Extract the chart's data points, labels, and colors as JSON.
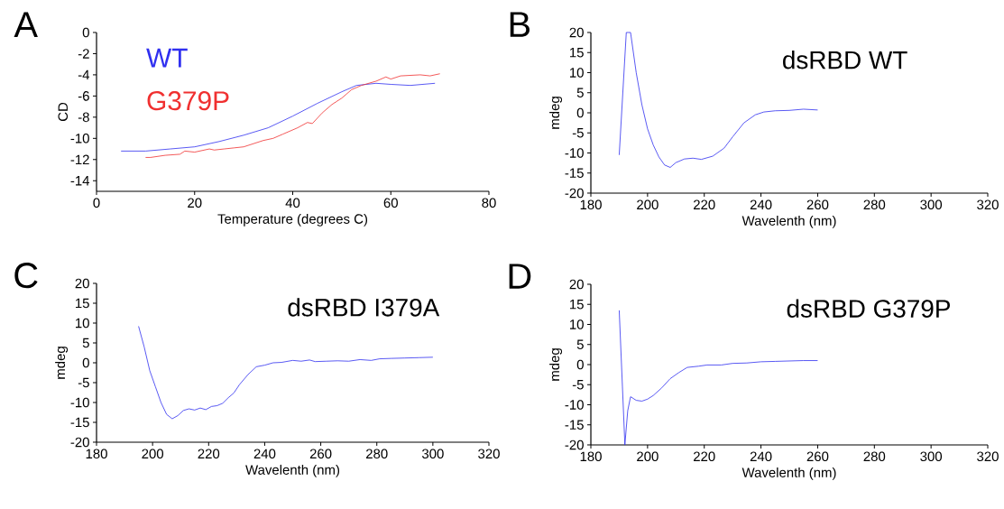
{
  "chart_data": [
    {
      "type": "line",
      "annotations": [
        "A"
      ],
      "xlabel": "Temperature (degrees C)",
      "ylabel": "CD",
      "xlim": [
        0,
        80
      ],
      "ylim": [
        -15,
        0
      ],
      "xticks": [
        0,
        20,
        40,
        60,
        80
      ],
      "yticks": [
        0,
        -2,
        -4,
        -6,
        -8,
        -10,
        -12,
        -14
      ],
      "legend": "top left",
      "grid": false,
      "series": [
        {
          "name": "WT",
          "color": "#3030f0",
          "x": [
            5,
            10,
            15,
            20,
            25,
            30,
            35,
            40,
            45,
            50,
            53,
            57,
            60,
            64,
            69
          ],
          "values": [
            -11.2,
            -11.2,
            -11.0,
            -10.8,
            -10.3,
            -9.7,
            -9.0,
            -7.9,
            -6.7,
            -5.6,
            -5.0,
            -4.8,
            -4.9,
            -5.0,
            -4.8
          ]
        },
        {
          "name": "G379P",
          "color": "#f03030",
          "x": [
            10,
            11,
            14,
            17,
            18,
            20,
            23,
            24,
            26,
            28,
            30,
            32,
            34,
            36,
            38,
            41,
            43,
            44,
            46,
            48,
            50,
            52,
            54,
            57,
            59,
            60,
            62,
            66,
            68,
            70
          ],
          "values": [
            -11.8,
            -11.8,
            -11.6,
            -11.5,
            -11.2,
            -11.3,
            -11.0,
            -11.1,
            -11.0,
            -10.9,
            -10.8,
            -10.5,
            -10.2,
            -10.0,
            -9.6,
            -9.0,
            -8.5,
            -8.6,
            -7.6,
            -6.8,
            -6.2,
            -5.4,
            -5.0,
            -4.6,
            -4.2,
            -4.4,
            -4.1,
            -4.0,
            -4.1,
            -3.9
          ]
        }
      ]
    },
    {
      "type": "line",
      "annotations": [
        "B"
      ],
      "title": "dsRBD WT",
      "xlabel": "Wavelenth (nm)",
      "ylabel": "mdeg",
      "xlim": [
        180,
        320
      ],
      "ylim": [
        -20,
        20
      ],
      "xticks": [
        180,
        200,
        220,
        240,
        260,
        280,
        300,
        320
      ],
      "yticks": [
        20,
        15,
        10,
        5,
        0,
        -5,
        -10,
        -15,
        -20
      ],
      "grid": false,
      "series": [
        {
          "color": "#3030f0",
          "x": [
            190,
            192.5,
            194,
            196,
            198,
            200,
            202,
            204,
            206,
            208,
            210,
            213,
            216,
            219,
            223,
            227,
            230,
            234,
            238,
            241,
            245,
            250,
            255,
            260
          ],
          "values": [
            -10.5,
            20,
            20,
            10,
            2,
            -4,
            -8,
            -11,
            -13,
            -13.6,
            -12.4,
            -11.5,
            -11.3,
            -11.6,
            -10.8,
            -8.8,
            -6,
            -2.5,
            -0.5,
            0.2,
            0.5,
            0.6,
            0.9,
            0.7
          ]
        }
      ]
    },
    {
      "type": "line",
      "annotations": [
        "C"
      ],
      "title": "dsRBD I379A",
      "xlabel": "Wavelenth (nm)",
      "ylabel": "mdeg",
      "xlim": [
        180,
        320
      ],
      "ylim": [
        -20,
        20
      ],
      "xticks": [
        180,
        200,
        220,
        240,
        260,
        280,
        300,
        320
      ],
      "yticks": [
        20,
        15,
        10,
        5,
        0,
        -5,
        -10,
        -15,
        -20
      ],
      "grid": false,
      "series": [
        {
          "color": "#3030f0",
          "x": [
            195,
            197,
            199,
            201,
            203,
            205,
            207,
            209,
            211,
            213,
            215,
            217,
            219,
            221,
            223,
            225,
            227,
            229,
            231,
            234,
            237,
            240,
            243,
            246,
            250,
            253,
            256,
            258,
            262,
            266,
            270,
            274,
            278,
            281,
            285,
            290,
            295,
            300
          ],
          "values": [
            9.2,
            4,
            -2,
            -6,
            -10,
            -13,
            -14.1,
            -13.3,
            -12,
            -11.6,
            -11.9,
            -11.4,
            -11.8,
            -11,
            -10.8,
            -10.2,
            -8.8,
            -7.6,
            -5.5,
            -3,
            -1,
            -0.6,
            0,
            0.1,
            0.6,
            0.4,
            0.7,
            0.3,
            0.4,
            0.5,
            0.4,
            0.8,
            0.6,
            1.0,
            1.1,
            1.2,
            1.3,
            1.4
          ]
        }
      ]
    },
    {
      "type": "line",
      "annotations": [
        "D"
      ],
      "title": "dsRBD G379P",
      "xlabel": "Wavelenth (nm)",
      "ylabel": "mdeg",
      "xlim": [
        180,
        320
      ],
      "ylim": [
        -20,
        20
      ],
      "xticks": [
        180,
        200,
        220,
        240,
        260,
        280,
        300,
        320
      ],
      "yticks": [
        20,
        15,
        10,
        5,
        0,
        -5,
        -10,
        -15,
        -20
      ],
      "grid": false,
      "series": [
        {
          "color": "#3030f0",
          "x": [
            190,
            192,
            193,
            194,
            196,
            198,
            200,
            202,
            205,
            208,
            211,
            214,
            218,
            221,
            226,
            230,
            235,
            240,
            245,
            250,
            255,
            260
          ],
          "values": [
            13.5,
            -20,
            -11.5,
            -8,
            -8.9,
            -9.1,
            -8.6,
            -7.7,
            -5.8,
            -3.5,
            -2,
            -0.7,
            -0.4,
            -0.1,
            -0.1,
            0.3,
            0.4,
            0.7,
            0.8,
            0.9,
            1.0,
            1.0
          ]
        }
      ]
    }
  ]
}
